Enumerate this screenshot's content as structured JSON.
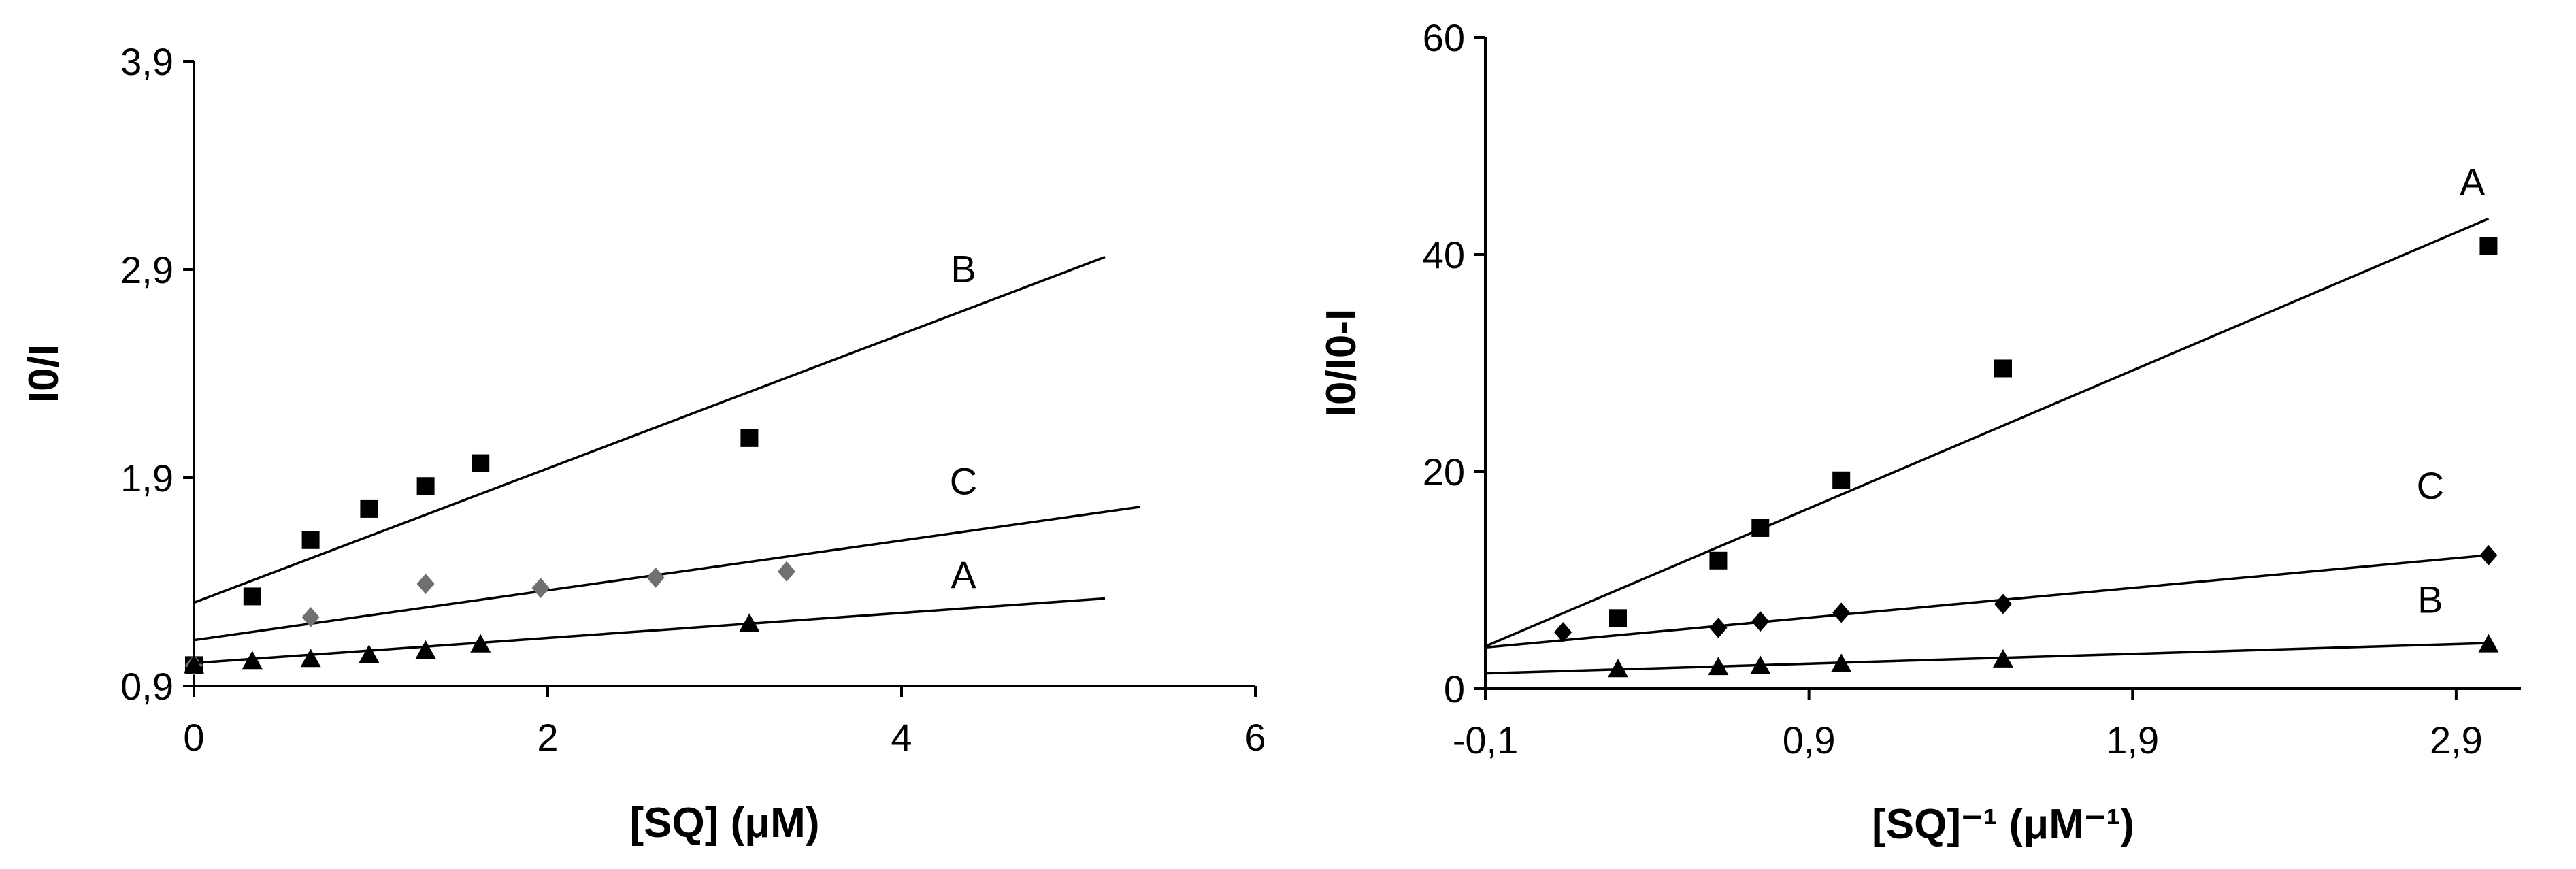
{
  "colors": {
    "axis": "#000000",
    "line": "#000000",
    "marker_dark": "#000000",
    "marker_gray": "#707070"
  },
  "chart_data": [
    {
      "type": "scatter",
      "title": "",
      "xlabel": "[SQ] (μM)",
      "ylabel": "I0/I",
      "xlim": [
        0,
        6
      ],
      "ylim": [
        0.9,
        3.9
      ],
      "xticks": [
        0,
        2,
        4,
        6
      ],
      "xtick_labels": [
        "0",
        "2",
        "4",
        "6"
      ],
      "yticks": [
        0.9,
        1.9,
        2.9,
        3.9
      ],
      "ytick_labels": [
        "0,9",
        "1,9",
        "2,9",
        "3,9"
      ],
      "grid": false,
      "series": [
        {
          "name": "B",
          "marker": "square",
          "color": "#000000",
          "points": [
            [
              0,
              1.0
            ],
            [
              0.33,
              1.33
            ],
            [
              0.66,
              1.6
            ],
            [
              0.99,
              1.75
            ],
            [
              1.31,
              1.86
            ],
            [
              1.62,
              1.97
            ],
            [
              3.14,
              2.09
            ]
          ],
          "fit": {
            "x": [
              0,
              5.15
            ],
            "y": [
              1.3,
              2.96
            ]
          },
          "label": "B",
          "label_at": [
            4.35,
            2.84
          ]
        },
        {
          "name": "C",
          "marker": "diamond",
          "color": "#707070",
          "points": [
            [
              0,
              1.0
            ],
            [
              0.66,
              1.23
            ],
            [
              1.31,
              1.39
            ],
            [
              1.96,
              1.37
            ],
            [
              2.61,
              1.42
            ],
            [
              3.35,
              1.45
            ]
          ],
          "fit": {
            "x": [
              0,
              5.35
            ],
            "y": [
              1.12,
              1.76
            ]
          },
          "label": "C",
          "label_at": [
            4.35,
            1.82
          ]
        },
        {
          "name": "A",
          "marker": "triangle",
          "color": "#000000",
          "points": [
            [
              0,
              1.0
            ],
            [
              0.33,
              1.02
            ],
            [
              0.66,
              1.03
            ],
            [
              0.99,
              1.05
            ],
            [
              1.31,
              1.07
            ],
            [
              1.62,
              1.1
            ],
            [
              3.14,
              1.2
            ]
          ],
          "fit": {
            "x": [
              0,
              5.15
            ],
            "y": [
              1.01,
              1.32
            ]
          },
          "label": "A",
          "label_at": [
            4.35,
            1.37
          ]
        }
      ]
    },
    {
      "type": "scatter",
      "title": "",
      "xlabel": "[SQ]⁻¹ (μM⁻¹)",
      "ylabel": "I0/I0-I",
      "xlim": [
        -0.1,
        3.1
      ],
      "ylim": [
        0,
        60
      ],
      "xticks": [
        -0.1,
        0.9,
        1.9,
        2.9
      ],
      "xtick_labels": [
        "-0,1",
        "0,9",
        "1,9",
        "2,9"
      ],
      "yticks": [
        0,
        20,
        40,
        60
      ],
      "ytick_labels": [
        "0",
        "20",
        "40",
        "60"
      ],
      "grid": false,
      "series": [
        {
          "name": "A",
          "marker": "square",
          "color": "#000000",
          "points": [
            [
              0.31,
              6.5
            ],
            [
              0.62,
              11.8
            ],
            [
              0.75,
              14.8
            ],
            [
              1.0,
              19.2
            ],
            [
              1.5,
              29.5
            ],
            [
              3.0,
              40.8
            ]
          ],
          "fit": {
            "x": [
              -0.1,
              3.0
            ],
            "y": [
              3.9,
              43.3
            ]
          },
          "label": "A",
          "label_at": [
            2.95,
            45.5
          ]
        },
        {
          "name": "C",
          "marker": "diamond",
          "color": "#000000",
          "points": [
            [
              0.14,
              5.2
            ],
            [
              0.62,
              5.6
            ],
            [
              0.75,
              6.2
            ],
            [
              1.0,
              7.0
            ],
            [
              1.5,
              7.8
            ],
            [
              3.0,
              12.3
            ]
          ],
          "fit": {
            "x": [
              -0.1,
              3.0
            ],
            "y": [
              3.8,
              12.3
            ]
          },
          "label": "C",
          "label_at": [
            2.82,
            17.5
          ]
        },
        {
          "name": "B",
          "marker": "triangle",
          "color": "#000000",
          "points": [
            [
              0.31,
              1.8
            ],
            [
              0.62,
              2.0
            ],
            [
              0.75,
              2.1
            ],
            [
              1.0,
              2.3
            ],
            [
              1.5,
              2.7
            ],
            [
              3.0,
              4.1
            ]
          ],
          "fit": {
            "x": [
              -0.1,
              3.0
            ],
            "y": [
              1.4,
              4.2
            ]
          },
          "label": "B",
          "label_at": [
            2.82,
            7.0
          ]
        }
      ]
    }
  ]
}
